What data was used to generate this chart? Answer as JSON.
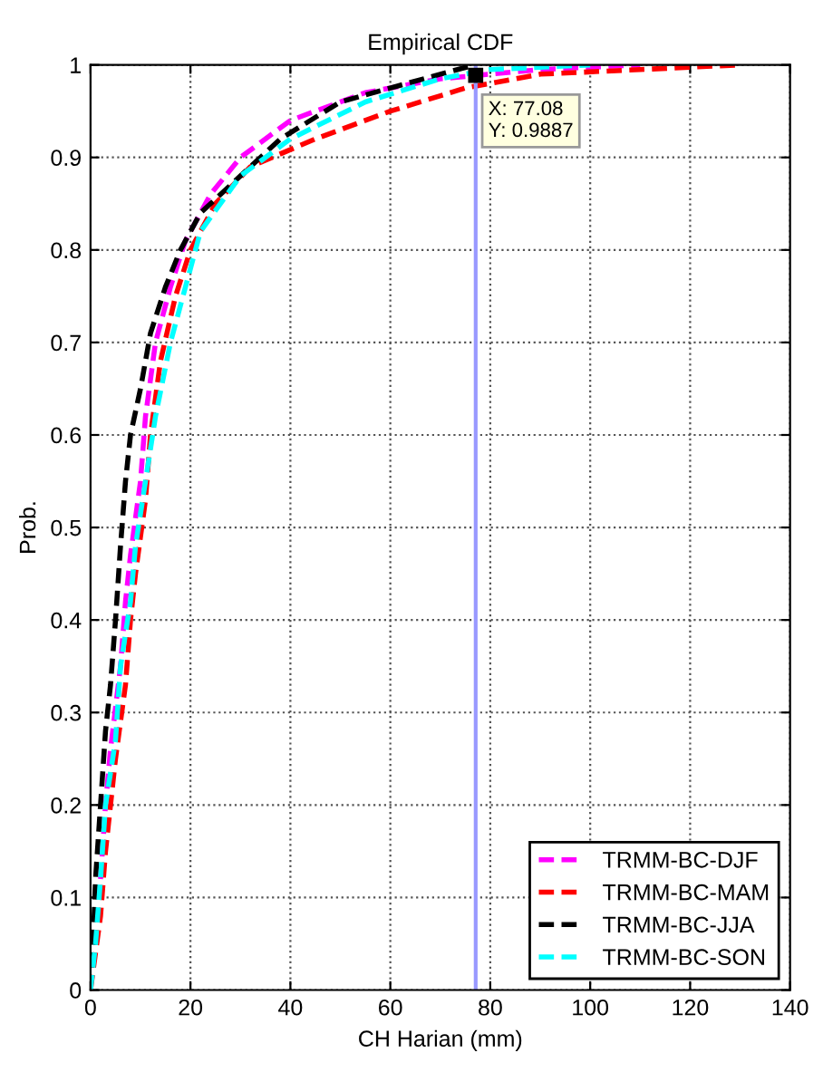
{
  "chart_data": {
    "type": "line",
    "title": "Empirical CDF",
    "xlabel": "CH Harian (mm)",
    "ylabel": "Prob.",
    "xlim": [
      0,
      140
    ],
    "xticks": [
      0,
      20,
      40,
      60,
      80,
      100,
      120,
      140
    ],
    "ylim": [
      0,
      1
    ],
    "yticks": [
      0,
      0.1,
      0.2,
      0.3,
      0.4,
      0.5,
      0.6,
      0.7,
      0.8,
      0.9,
      1
    ],
    "grid": true,
    "legend": "bottom right",
    "line_style": "dashed",
    "series": [
      {
        "name": "TRMM-BC-DJF",
        "color": "#ff00ff",
        "x": [
          2,
          3,
          4,
          6,
          7,
          8,
          10,
          11,
          13,
          16,
          19,
          24,
          30,
          40,
          55,
          70,
          90,
          110
        ],
        "values": [
          0.12,
          0.2,
          0.26,
          0.35,
          0.42,
          0.47,
          0.55,
          0.62,
          0.7,
          0.76,
          0.81,
          0.86,
          0.9,
          0.94,
          0.97,
          0.985,
          0.995,
          1.0
        ]
      },
      {
        "name": "TRMM-BC-MAM",
        "color": "#ff0000",
        "x": [
          0,
          2,
          3,
          5,
          7,
          8,
          9,
          11,
          12,
          14,
          17,
          20,
          25,
          32,
          45,
          60,
          75,
          90,
          110,
          130
        ],
        "values": [
          0,
          0.08,
          0.15,
          0.25,
          0.33,
          0.4,
          0.45,
          0.53,
          0.6,
          0.68,
          0.75,
          0.8,
          0.85,
          0.89,
          0.92,
          0.95,
          0.975,
          0.99,
          0.995,
          1.0
        ]
      },
      {
        "name": "TRMM-BC-JJA",
        "color": "#000000",
        "x": [
          0,
          0.5,
          1,
          2,
          3,
          4,
          5,
          6,
          7,
          8,
          10,
          12,
          15,
          18,
          22,
          30,
          38,
          50,
          60,
          70,
          77
        ],
        "values": [
          0,
          0.05,
          0.12,
          0.2,
          0.28,
          0.33,
          0.4,
          0.48,
          0.55,
          0.6,
          0.65,
          0.71,
          0.76,
          0.8,
          0.84,
          0.88,
          0.92,
          0.96,
          0.975,
          0.99,
          1.0
        ]
      },
      {
        "name": "TRMM-BC-SON",
        "color": "#00ffff",
        "x": [
          0,
          1,
          2,
          3,
          5,
          6,
          8,
          9,
          11,
          13,
          16,
          19,
          22,
          30,
          40,
          55,
          70,
          80,
          100
        ],
        "values": [
          0,
          0.05,
          0.12,
          0.2,
          0.27,
          0.35,
          0.42,
          0.48,
          0.55,
          0.62,
          0.7,
          0.76,
          0.82,
          0.88,
          0.92,
          0.96,
          0.985,
          0.995,
          1.0
        ]
      }
    ],
    "ref_lines": [
      {
        "axis": "x",
        "value": 77.08,
        "color": "#9999ff",
        "line_style": "solid"
      }
    ],
    "annotations": [
      {
        "text": "X: 77.08\nY: 0.9887",
        "x": 77.08,
        "y": 0.9887
      }
    ]
  }
}
